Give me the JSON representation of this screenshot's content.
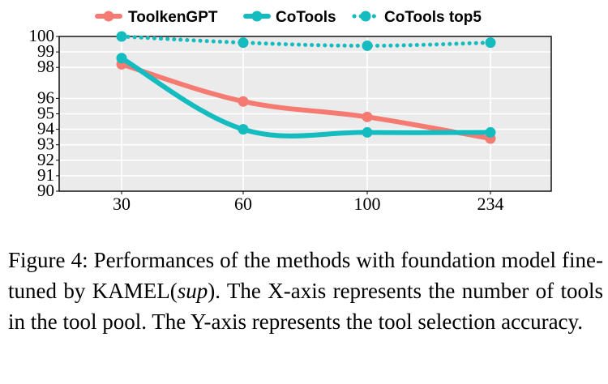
{
  "chart_data": {
    "type": "line",
    "categories": [
      "30",
      "60",
      "100",
      "234"
    ],
    "series": [
      {
        "name": "ToolkenGPT",
        "values": [
          98.2,
          95.8,
          94.8,
          93.4
        ],
        "color": "#f47a72",
        "style": "solid"
      },
      {
        "name": "CoTools",
        "values": [
          98.6,
          94.0,
          93.8,
          93.8
        ],
        "color": "#14bcc0",
        "style": "solid"
      },
      {
        "name": "CoTools top5",
        "values": [
          100.0,
          99.6,
          99.4,
          99.6
        ],
        "color": "#14bcc0",
        "style": "dotted"
      }
    ],
    "yticks": [
      90,
      91,
      92,
      93,
      94,
      95,
      96,
      98,
      99,
      100
    ],
    "ylim": [
      90,
      100
    ],
    "xlabel": "",
    "ylabel": "",
    "grid": true,
    "legend_position": "top",
    "background_color": "#ebebeb",
    "grid_color": "#ffffff"
  },
  "caption": {
    "part1": "Figure 4: Performances of the methods with foundation model fine-tuned by KAMEL(",
    "italic": "sup",
    "part2": "). The X-axis represents the number of tools in the tool pool. The Y-axis represents the tool selection accuracy."
  }
}
